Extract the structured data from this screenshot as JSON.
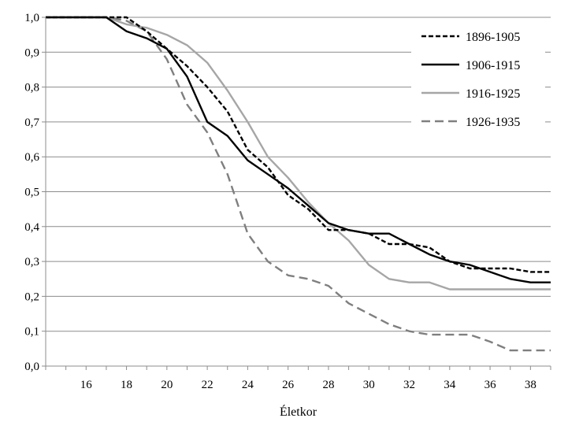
{
  "chart_data": {
    "type": "line",
    "xlabel": "Életkor",
    "ylabel": "",
    "xlim": [
      14,
      39
    ],
    "ylim": [
      0,
      1
    ],
    "grid": "horizontal",
    "legend_position": "top-right",
    "x_ticks": [
      16,
      18,
      20,
      22,
      24,
      26,
      28,
      30,
      32,
      34,
      36,
      38
    ],
    "y_ticks": [
      "0,0",
      "0,1",
      "0,2",
      "0,3",
      "0,4",
      "0,5",
      "0,6",
      "0,7",
      "0,8",
      "0,9",
      "1,0"
    ],
    "x": [
      14,
      15,
      16,
      17,
      18,
      19,
      20,
      21,
      22,
      23,
      24,
      25,
      26,
      27,
      28,
      29,
      30,
      31,
      32,
      33,
      34,
      35,
      36,
      37,
      38,
      39
    ],
    "series": [
      {
        "name": "1896-1905",
        "color": "#000000",
        "dash": "short-dash",
        "values": [
          1.0,
          1.0,
          1.0,
          1.0,
          1.0,
          0.96,
          0.91,
          0.86,
          0.8,
          0.73,
          0.62,
          0.57,
          0.49,
          0.45,
          0.39,
          0.39,
          0.38,
          0.35,
          0.35,
          0.34,
          0.3,
          0.28,
          0.28,
          0.28,
          0.27,
          0.27
        ]
      },
      {
        "name": "1906-1915",
        "color": "#000000",
        "dash": "solid",
        "values": [
          1.0,
          1.0,
          1.0,
          1.0,
          0.96,
          0.94,
          0.91,
          0.83,
          0.7,
          0.66,
          0.59,
          0.55,
          0.51,
          0.46,
          0.41,
          0.39,
          0.38,
          0.38,
          0.35,
          0.32,
          0.3,
          0.29,
          0.27,
          0.25,
          0.24,
          0.24
        ]
      },
      {
        "name": "1916-1925",
        "color": "#a6a6a6",
        "dash": "solid",
        "values": [
          1.0,
          1.0,
          1.0,
          1.0,
          0.98,
          0.97,
          0.95,
          0.92,
          0.87,
          0.79,
          0.7,
          0.6,
          0.54,
          0.47,
          0.41,
          0.36,
          0.29,
          0.25,
          0.24,
          0.24,
          0.22,
          0.22,
          0.22,
          0.22,
          0.22,
          0.22
        ]
      },
      {
        "name": "1926-1935",
        "color": "#7f7f7f",
        "dash": "long-dash",
        "values": [
          1.0,
          1.0,
          1.0,
          1.0,
          0.99,
          0.96,
          0.88,
          0.75,
          0.67,
          0.55,
          0.38,
          0.3,
          0.26,
          0.25,
          0.23,
          0.18,
          0.15,
          0.12,
          0.1,
          0.09,
          0.09,
          0.09,
          0.07,
          0.045,
          0.045,
          0.045
        ]
      }
    ]
  }
}
